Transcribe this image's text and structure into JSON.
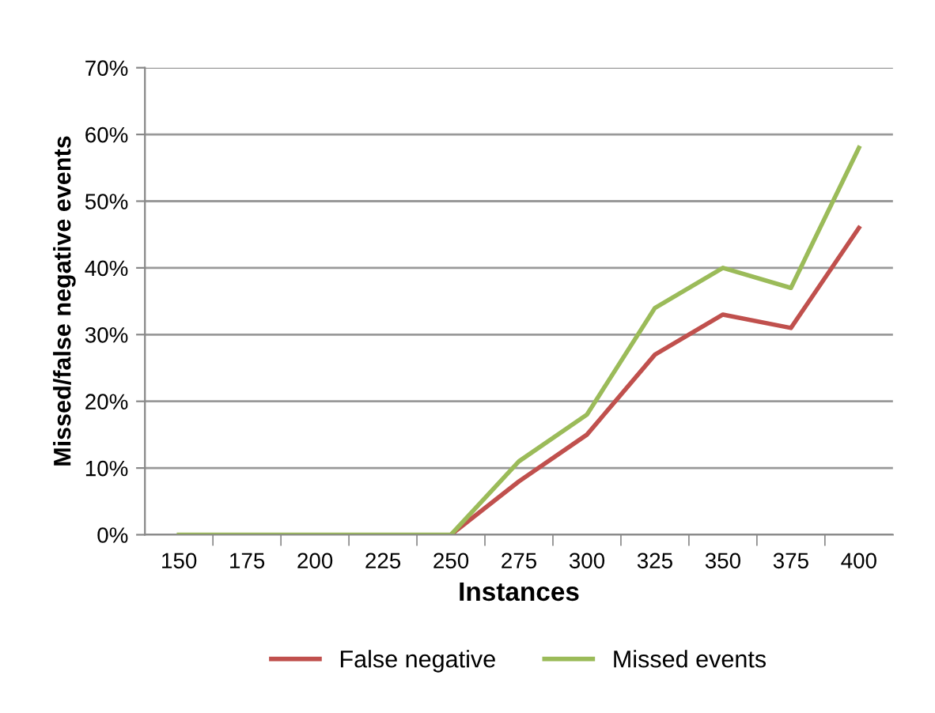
{
  "chart_data": {
    "type": "line",
    "xlabel": "Instances",
    "ylabel": "Missed/false negative events",
    "categories": [
      "150",
      "175",
      "200",
      "225",
      "250",
      "275",
      "300",
      "325",
      "350",
      "375",
      "400"
    ],
    "series": [
      {
        "name": "False negative",
        "color": "#c0504d",
        "values": [
          null,
          null,
          null,
          null,
          0,
          8,
          15,
          27,
          33,
          31,
          46
        ]
      },
      {
        "name": "Missed events",
        "color": "#9bbb59",
        "values": [
          0,
          0,
          0,
          0,
          0,
          11,
          18,
          34,
          40,
          37,
          58
        ]
      }
    ],
    "ylim": [
      0,
      70
    ],
    "yticks": [
      {
        "value": 0,
        "label": "0%"
      },
      {
        "value": 10,
        "label": "10%"
      },
      {
        "value": 20,
        "label": "20%"
      },
      {
        "value": 30,
        "label": "30%"
      },
      {
        "value": 40,
        "label": "40%"
      },
      {
        "value": 50,
        "label": "50%"
      },
      {
        "value": 60,
        "label": "60%"
      },
      {
        "value": 70,
        "label": "70%"
      }
    ],
    "grid": "y",
    "legend": "bottom",
    "marker": "none",
    "line_style": "solid"
  }
}
